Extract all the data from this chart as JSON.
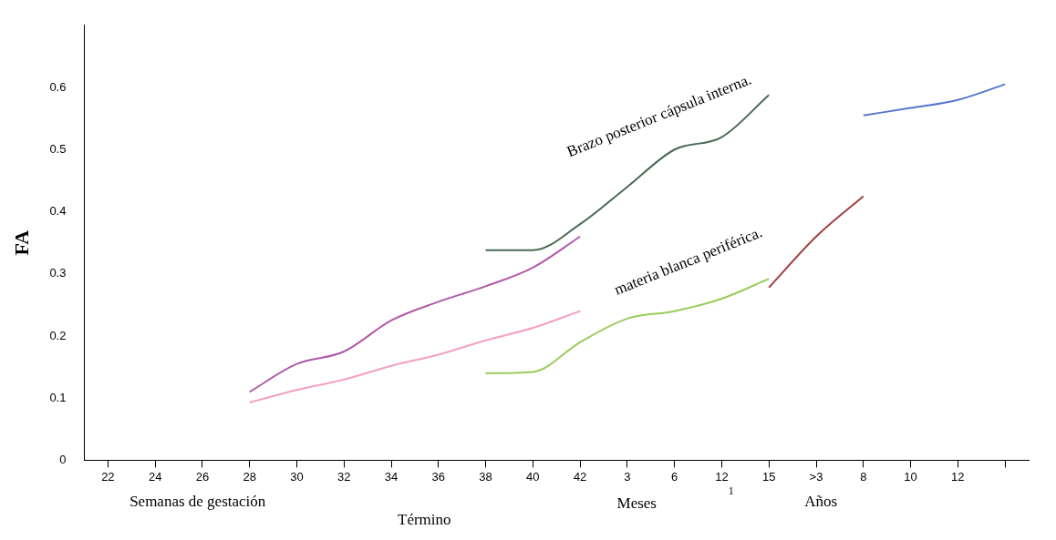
{
  "chart_data": {
    "type": "line",
    "ylabel": "FA",
    "categories": [
      "22",
      "24",
      "26",
      "28",
      "30",
      "32",
      "34",
      "36",
      "38",
      "40",
      "42",
      "3",
      "6",
      "12",
      "15",
      ">3",
      "8",
      "10",
      "12",
      null
    ],
    "series": [
      {
        "color": "#b05aa8",
        "values": [
          null,
          null,
          null,
          0.11,
          0.155,
          0.175,
          0.225,
          0.255,
          0.28,
          0.31,
          0.36,
          null,
          null,
          null,
          null,
          null,
          null,
          null,
          null,
          null
        ]
      },
      {
        "color": "#f4a0c4",
        "values": [
          null,
          null,
          null,
          0.093,
          0.113,
          0.13,
          0.152,
          0.17,
          0.193,
          0.213,
          0.24,
          null,
          null,
          null,
          null,
          null,
          null,
          null,
          null,
          null
        ]
      },
      {
        "name": "Brazo posterior cápsula interna.",
        "color": "#4a6a55",
        "values": [
          null,
          null,
          null,
          null,
          null,
          null,
          null,
          null,
          0.338,
          0.338,
          0.38,
          0.44,
          0.5,
          0.52,
          0.588,
          null,
          null,
          null,
          null,
          null
        ]
      },
      {
        "name": "materia blanca periférica.",
        "color": "#9acd5a",
        "values": [
          null,
          null,
          null,
          null,
          null,
          null,
          null,
          null,
          0.14,
          0.142,
          0.19,
          0.228,
          0.24,
          0.26,
          0.292,
          null,
          null,
          null,
          null,
          null
        ]
      },
      {
        "color": "#a04040",
        "values": [
          null,
          null,
          null,
          null,
          null,
          null,
          null,
          null,
          null,
          null,
          null,
          null,
          null,
          null,
          0.278,
          0.36,
          0.425,
          null,
          null,
          null
        ]
      },
      {
        "color": "#5577cc",
        "values": [
          null,
          null,
          null,
          null,
          null,
          null,
          null,
          null,
          null,
          null,
          null,
          null,
          null,
          null,
          null,
          null,
          0.555,
          0.567,
          0.58,
          0.605
        ]
      }
    ],
    "ylim": [
      0,
      0.7
    ],
    "yticks": [
      0,
      0.1,
      0.2,
      0.3,
      0.4,
      0.5,
      0.6
    ],
    "grid": false,
    "legend": false,
    "marker": "none",
    "annotations": [
      "Semanas de gestación",
      "Término",
      "Meses",
      "1",
      "Años"
    ]
  }
}
